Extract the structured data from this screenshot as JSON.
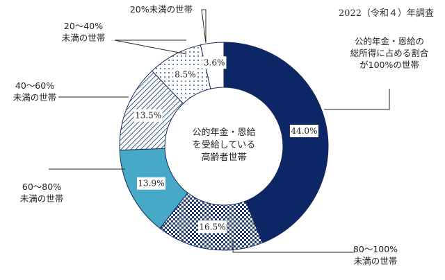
{
  "note": "2022（令和４）年調査",
  "center_label": [
    "公的年金・恩給",
    "を受給している",
    "高齢者世帯"
  ],
  "chart_data": {
    "type": "pie",
    "title": "",
    "slices": [
      {
        "label": "公的年金・恩給の総所得に占める割合が100%の世帯",
        "lines": [
          "公的年金・恩給の",
          "総所得に占める割合",
          "が100%の世帯"
        ],
        "value": 44.0,
        "display": "44.0%",
        "color": "#0d2766"
      },
      {
        "label": "80〜100%未満の世帯",
        "lines": [
          "80～100%",
          "未満の世帯"
        ],
        "value": 16.5,
        "display": "16.5%",
        "color": "#2f4f8f"
      },
      {
        "label": "60〜80%未満の世帯",
        "lines": [
          "60～80%",
          "未満の世帯"
        ],
        "value": 13.9,
        "display": "13.9%",
        "color": "#45a9c7"
      },
      {
        "label": "40〜60%未満の世帯",
        "lines": [
          "40～60%",
          "未満の世帯"
        ],
        "value": 13.5,
        "display": "13.5%",
        "color": "#5a7aa8"
      },
      {
        "label": "20〜40%未満の世帯",
        "lines": [
          "20～40%",
          "未満の世帯"
        ],
        "value": 8.5,
        "display": "8.5%",
        "color": "#7b8fb5"
      },
      {
        "label": "20%未満の世帯",
        "lines": [
          "20%未満の世帯"
        ],
        "value": 3.6,
        "display": "3.6%",
        "color": "#ffffff"
      }
    ]
  }
}
